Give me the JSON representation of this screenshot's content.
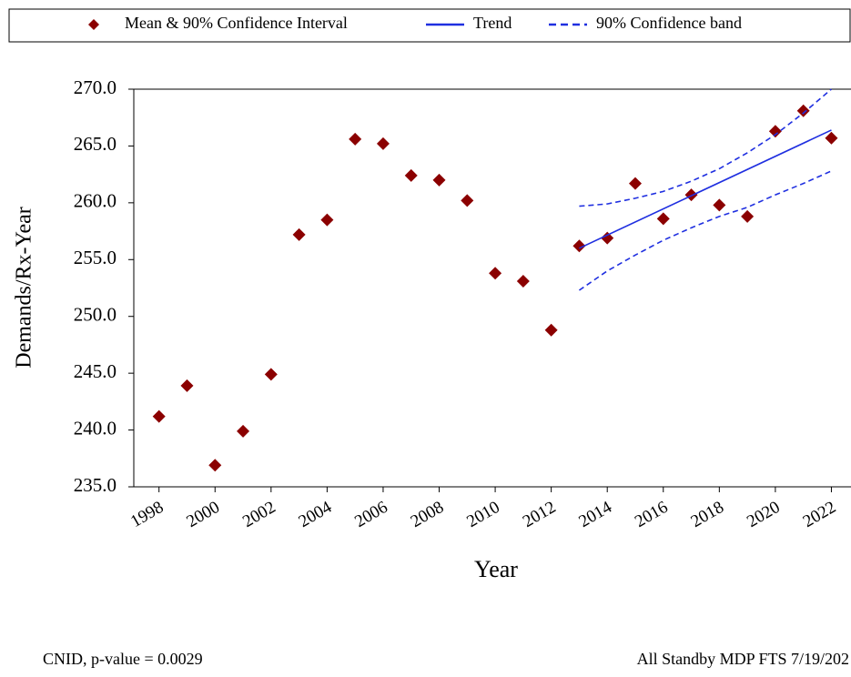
{
  "chart_data": {
    "type": "scatter",
    "x_label": "Year",
    "y_label": "Demands/Rx-Year",
    "xlim": [
      1997.1,
      2022.7
    ],
    "ylim": [
      235,
      270
    ],
    "xticks": [
      1998,
      2000,
      2002,
      2004,
      2006,
      2008,
      2010,
      2012,
      2014,
      2016,
      2018,
      2020,
      2022
    ],
    "yticks": [
      {
        "value": 235,
        "label": "235.0"
      },
      {
        "value": 240,
        "label": "240.0"
      },
      {
        "value": 245,
        "label": "245.0"
      },
      {
        "value": 250,
        "label": "250.0"
      },
      {
        "value": 255,
        "label": "255.0"
      },
      {
        "value": 260,
        "label": "260.0"
      },
      {
        "value": 265,
        "label": "265.0"
      },
      {
        "value": 270,
        "label": "270.0"
      }
    ],
    "series": [
      {
        "name": "Mean & 90% Confidence Interval",
        "style": "marker",
        "color": "#8b0000",
        "x": [
          1998,
          1999,
          2000,
          2001,
          2002,
          2003,
          2004,
          2005,
          2006,
          2007,
          2008,
          2009,
          2010,
          2011,
          2012,
          2013,
          2014,
          2015,
          2016,
          2017,
          2018,
          2019,
          2020,
          2021,
          2022
        ],
        "values": [
          241.2,
          243.9,
          236.9,
          239.9,
          244.9,
          257.2,
          258.5,
          265.6,
          265.2,
          262.4,
          262.0,
          260.2,
          253.8,
          253.1,
          248.8,
          256.2,
          256.9,
          261.7,
          258.6,
          260.7,
          259.8,
          258.8,
          266.3,
          268.1,
          265.7
        ]
      },
      {
        "name": "Trend",
        "style": "solid",
        "color": "#1f2fe0",
        "x": [
          2013,
          2022
        ],
        "values": [
          256.0,
          266.4
        ]
      },
      {
        "name": "90% Confidence band",
        "style": "dashed",
        "color": "#1f2fe0",
        "x": [
          2013,
          2014,
          2015,
          2016,
          2017,
          2018,
          2019,
          2020,
          2021,
          2022
        ],
        "values": [
          259.7,
          259.9,
          260.4,
          261.0,
          261.9,
          263.0,
          264.4,
          266.0,
          267.9,
          270.0
        ],
        "lower": [
          252.3,
          254.0,
          255.4,
          256.7,
          257.8,
          258.8,
          259.6,
          260.7,
          261.7,
          262.8
        ]
      }
    ],
    "footer_left": "CNID, p-value = 0.0029",
    "footer_right": "All Standby MDP FTS 7/19/202"
  }
}
